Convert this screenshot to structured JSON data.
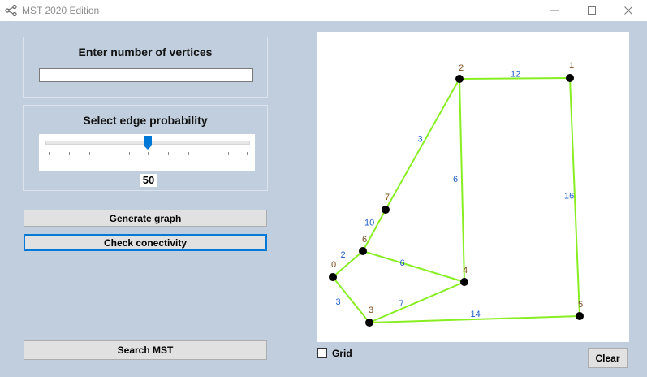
{
  "window": {
    "title": "MST 2020 Edition"
  },
  "vertices": {
    "title": "Enter number of vertices",
    "value": ""
  },
  "probability": {
    "title": "Select edge probability",
    "value": "50"
  },
  "buttons": {
    "generate": "Generate graph",
    "check": "Check conectivity",
    "search": "Search MST",
    "clear": "Clear"
  },
  "grid": {
    "label": "Grid",
    "checked": false
  },
  "graph": {
    "node_color": "#000000",
    "node_label_color": "#7a4a1e",
    "edge_color": "#88ee22",
    "weight_color": "#1f5fc8",
    "nodes": [
      {
        "id": "0",
        "label": "0"
      },
      {
        "id": "1",
        "label": "1"
      },
      {
        "id": "2",
        "label": "2"
      },
      {
        "id": "3",
        "label": "3"
      },
      {
        "id": "4",
        "label": "4"
      },
      {
        "id": "5",
        "label": "5"
      },
      {
        "id": "6",
        "label": "6"
      },
      {
        "id": "7",
        "label": "7"
      }
    ],
    "edges": [
      {
        "from": "2",
        "to": "1",
        "weight": "12"
      },
      {
        "from": "2",
        "to": "7",
        "weight": "3"
      },
      {
        "from": "2",
        "to": "4",
        "weight": "6"
      },
      {
        "from": "1",
        "to": "5",
        "weight": "16"
      },
      {
        "from": "7",
        "to": "6",
        "weight": "10"
      },
      {
        "from": "0",
        "to": "6",
        "weight": "2"
      },
      {
        "from": "6",
        "to": "4",
        "weight": "6"
      },
      {
        "from": "0",
        "to": "3",
        "weight": "3"
      },
      {
        "from": "3",
        "to": "4",
        "weight": "7"
      },
      {
        "from": "3",
        "to": "5",
        "weight": "14"
      }
    ]
  }
}
